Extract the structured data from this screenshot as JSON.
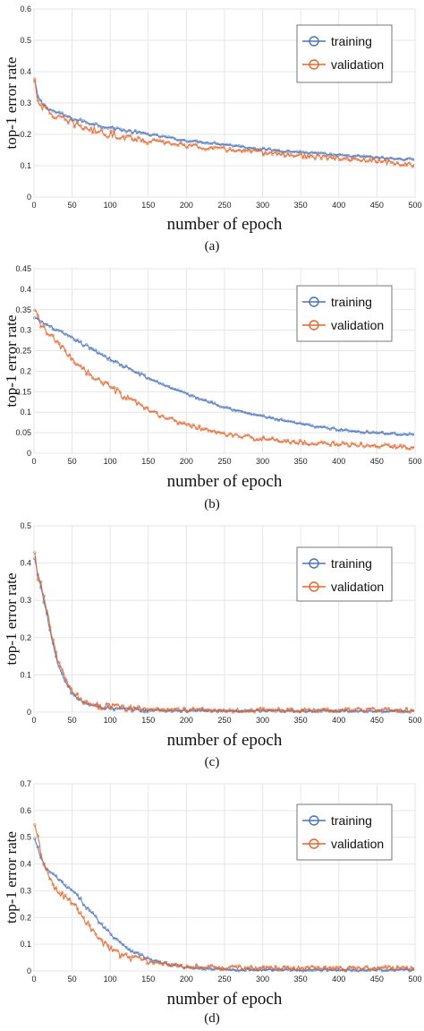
{
  "chart_data": [
    {
      "type": "line",
      "caption": "(a)",
      "xlabel": "number of epoch",
      "ylabel": "top-1 error rate",
      "xlim": [
        0,
        500
      ],
      "ylim": [
        0,
        0.6
      ],
      "xticks": [
        "0",
        "50",
        "100",
        "150",
        "200",
        "250",
        "300",
        "350",
        "400",
        "450",
        "500"
      ],
      "yticks": [
        "0",
        "0.1",
        "0.2",
        "0.3",
        "0.4",
        "0.5",
        "0.6"
      ],
      "grid": true,
      "legend_position": "top-right",
      "x": [
        0,
        5,
        10,
        20,
        30,
        40,
        50,
        75,
        100,
        125,
        150,
        175,
        200,
        225,
        250,
        275,
        300,
        325,
        350,
        375,
        400,
        425,
        450,
        475,
        500
      ],
      "series": [
        {
          "name": "training",
          "color": "#4a72b8",
          "values": [
            0.38,
            0.32,
            0.3,
            0.28,
            0.27,
            0.26,
            0.25,
            0.235,
            0.222,
            0.21,
            0.2,
            0.19,
            0.18,
            0.175,
            0.168,
            0.16,
            0.153,
            0.148,
            0.143,
            0.138,
            0.133,
            0.13,
            0.126,
            0.122,
            0.12
          ]
        },
        {
          "name": "validation",
          "color": "#e0662e",
          "values": [
            0.39,
            0.31,
            0.29,
            0.27,
            0.255,
            0.245,
            0.235,
            0.215,
            0.2,
            0.19,
            0.18,
            0.172,
            0.165,
            0.158,
            0.152,
            0.147,
            0.142,
            0.137,
            0.132,
            0.127,
            0.123,
            0.118,
            0.114,
            0.108,
            0.1
          ]
        }
      ]
    },
    {
      "type": "line",
      "caption": "(b)",
      "xlabel": "number of epoch",
      "ylabel": "top-1 error rate",
      "xlim": [
        0,
        500
      ],
      "ylim": [
        0,
        0.45
      ],
      "xticks": [
        "0",
        "50",
        "100",
        "150",
        "200",
        "250",
        "300",
        "350",
        "400",
        "450",
        "500"
      ],
      "yticks": [
        "0",
        "0.05",
        "0.1",
        "0.15",
        "0.2",
        "0.25",
        "0.3",
        "0.35",
        "0.4",
        "0.45"
      ],
      "grid": true,
      "legend_position": "top-right",
      "x": [
        0,
        5,
        10,
        20,
        30,
        40,
        50,
        75,
        100,
        125,
        150,
        175,
        200,
        225,
        250,
        275,
        300,
        325,
        350,
        375,
        400,
        425,
        450,
        475,
        500
      ],
      "series": [
        {
          "name": "training",
          "color": "#4a72b8",
          "values": [
            0.33,
            0.325,
            0.32,
            0.31,
            0.3,
            0.29,
            0.28,
            0.255,
            0.23,
            0.205,
            0.183,
            0.163,
            0.145,
            0.128,
            0.113,
            0.1,
            0.09,
            0.08,
            0.071,
            0.064,
            0.058,
            0.053,
            0.05,
            0.047,
            0.045
          ]
        },
        {
          "name": "validation",
          "color": "#e0662e",
          "values": [
            0.35,
            0.33,
            0.31,
            0.29,
            0.27,
            0.25,
            0.23,
            0.19,
            0.16,
            0.13,
            0.105,
            0.085,
            0.07,
            0.057,
            0.047,
            0.04,
            0.035,
            0.03,
            0.026,
            0.024,
            0.022,
            0.02,
            0.018,
            0.016,
            0.015
          ]
        }
      ]
    },
    {
      "type": "line",
      "caption": "(c)",
      "xlabel": "number of epoch",
      "ylabel": "top-1 error rate",
      "xlim": [
        0,
        500
      ],
      "ylim": [
        0,
        0.5
      ],
      "xticks": [
        "0",
        "50",
        "100",
        "150",
        "200",
        "250",
        "300",
        "350",
        "400",
        "450",
        "500"
      ],
      "yticks": [
        "0",
        "0.1",
        "0.2",
        "0.3",
        "0.4",
        "0.5"
      ],
      "grid": true,
      "legend_position": "top-right",
      "x": [
        0,
        5,
        10,
        15,
        20,
        25,
        30,
        35,
        40,
        50,
        60,
        75,
        100,
        125,
        150,
        175,
        200,
        250,
        300,
        350,
        400,
        450,
        500
      ],
      "series": [
        {
          "name": "training",
          "color": "#4a72b8",
          "values": [
            0.42,
            0.37,
            0.33,
            0.28,
            0.23,
            0.18,
            0.14,
            0.11,
            0.085,
            0.05,
            0.032,
            0.018,
            0.01,
            0.007,
            0.005,
            0.004,
            0.004,
            0.003,
            0.003,
            0.003,
            0.003,
            0.003,
            0.003
          ]
        },
        {
          "name": "validation",
          "color": "#e0662e",
          "values": [
            0.44,
            0.36,
            0.34,
            0.29,
            0.24,
            0.19,
            0.15,
            0.12,
            0.09,
            0.055,
            0.035,
            0.022,
            0.014,
            0.01,
            0.008,
            0.007,
            0.006,
            0.005,
            0.005,
            0.005,
            0.005,
            0.005,
            0.005
          ]
        }
      ]
    },
    {
      "type": "line",
      "caption": "(d)",
      "xlabel": "number of epoch",
      "ylabel": "top-1 error rate",
      "xlim": [
        0,
        500
      ],
      "ylim": [
        0,
        0.7
      ],
      "xticks": [
        "0",
        "50",
        "100",
        "150",
        "200",
        "250",
        "300",
        "350",
        "400",
        "450",
        "500"
      ],
      "yticks": [
        "0",
        "0.1",
        "0.2",
        "0.3",
        "0.4",
        "0.5",
        "0.6",
        "0.7"
      ],
      "grid": true,
      "legend_position": "top-right",
      "x": [
        0,
        5,
        10,
        20,
        30,
        40,
        50,
        60,
        75,
        90,
        100,
        125,
        150,
        175,
        200,
        225,
        250,
        300,
        350,
        400,
        450,
        500
      ],
      "series": [
        {
          "name": "training",
          "color": "#4a72b8",
          "values": [
            0.5,
            0.46,
            0.41,
            0.37,
            0.35,
            0.32,
            0.3,
            0.27,
            0.22,
            0.17,
            0.14,
            0.08,
            0.045,
            0.025,
            0.013,
            0.008,
            0.005,
            0.004,
            0.004,
            0.004,
            0.004,
            0.004
          ]
        },
        {
          "name": "validation",
          "color": "#e0662e",
          "values": [
            0.55,
            0.5,
            0.42,
            0.35,
            0.3,
            0.28,
            0.26,
            0.22,
            0.16,
            0.11,
            0.08,
            0.05,
            0.035,
            0.025,
            0.018,
            0.015,
            0.013,
            0.011,
            0.01,
            0.01,
            0.01,
            0.01
          ]
        }
      ]
    }
  ]
}
